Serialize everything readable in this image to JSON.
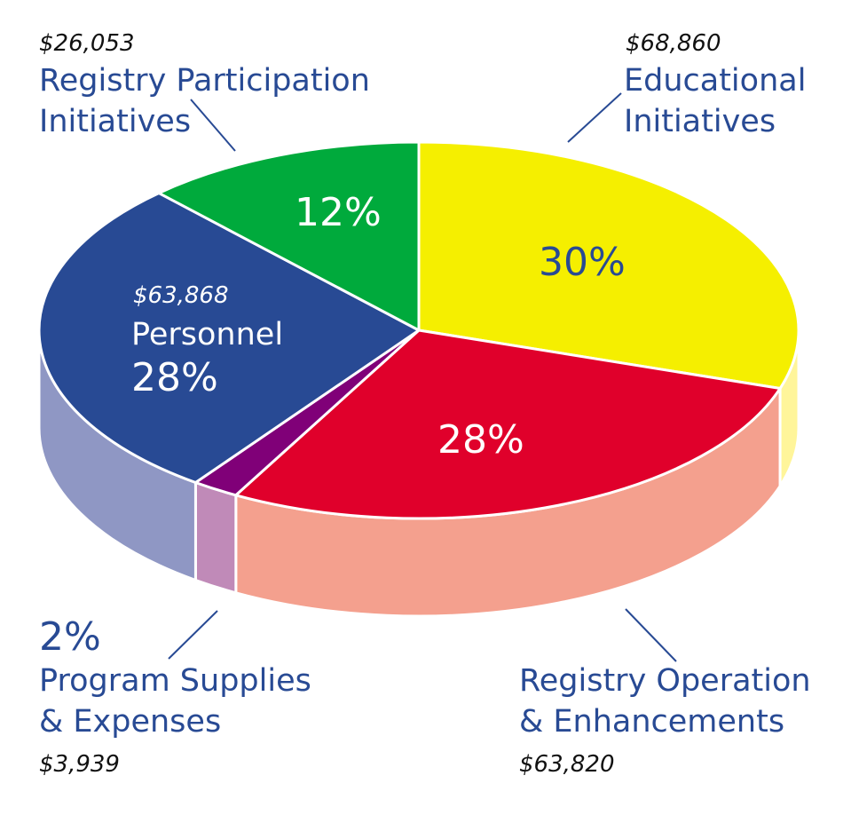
{
  "chart_data": {
    "type": "pie",
    "style": "3d",
    "text_color": "#284a94",
    "slices": [
      {
        "label_lines": [
          "Educational",
          "Initiatives"
        ],
        "amount": "$68,860",
        "percent": 30,
        "percent_label": "30%",
        "color": "#f5ef00",
        "side_color": "#fff59a",
        "percent_color": "#284a94"
      },
      {
        "label_lines": [
          "Registry Operation",
          "& Enhancements"
        ],
        "amount": "$63,820",
        "percent": 28,
        "percent_label": "28%",
        "color": "#e0002b",
        "side_color": "#f4a08e",
        "percent_color": "#ffffff"
      },
      {
        "label_lines": [
          "Program Supplies",
          "& Expenses"
        ],
        "amount": "$3,939",
        "percent": 2,
        "percent_label": "2%",
        "color": "#800078",
        "side_color": "#c08ab8",
        "percent_color": "#284a94"
      },
      {
        "label_lines": [
          "Personnel"
        ],
        "amount": "$63,868",
        "percent": 28,
        "percent_label": "28%",
        "color": "#284a94",
        "side_color": "#8f97c4",
        "percent_color": "#ffffff"
      },
      {
        "label_lines": [
          "Registry Participation",
          "Initiatives"
        ],
        "amount": "$26,053",
        "percent": 12,
        "percent_label": "12%",
        "color": "#00aa3c",
        "side_color": "#7fd49d",
        "percent_color": "#ffffff"
      }
    ]
  }
}
